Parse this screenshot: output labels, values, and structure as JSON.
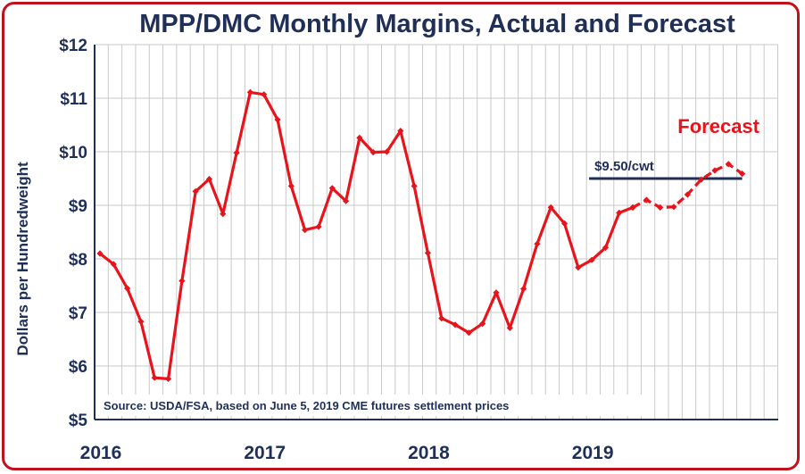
{
  "chart_data": {
    "type": "line",
    "title": "MPP/DMC Monthly Margins, Actual and Forecast",
    "ylabel": "Dollars per Hundredweight",
    "xlabel": "",
    "ylim": [
      5,
      12
    ],
    "y_ticks": [
      "$5",
      "$6",
      "$7",
      "$8",
      "$9",
      "$10",
      "$11",
      "$12"
    ],
    "x_ticks": [
      {
        "label": "2016",
        "month_index": 0
      },
      {
        "label": "2017",
        "month_index": 12
      },
      {
        "label": "2018",
        "month_index": 24
      },
      {
        "label": "2019",
        "month_index": 36
      }
    ],
    "grid": true,
    "series": [
      {
        "style": "solid",
        "color": "#e8141c",
        "start_month_index": 0,
        "values": [
          8.1,
          7.9,
          7.45,
          6.83,
          5.78,
          5.76,
          7.59,
          9.26,
          9.49,
          8.84,
          9.98,
          11.11,
          11.07,
          10.6,
          9.36,
          8.54,
          8.6,
          9.32,
          9.08,
          10.26,
          9.99,
          10.0,
          10.39,
          9.36,
          8.11,
          6.89,
          6.77,
          6.62,
          6.79,
          7.37,
          6.71,
          7.44,
          8.28,
          8.96,
          8.66,
          7.84,
          7.98,
          8.21,
          8.86,
          8.96
        ]
      },
      {
        "style": "dashed",
        "color": "#e8141c",
        "start_month_index": 39,
        "values": [
          8.96,
          9.1,
          8.96,
          8.97,
          9.2,
          9.48,
          9.65,
          9.77,
          9.59
        ]
      }
    ],
    "reference_line": {
      "value": 9.5,
      "label": "$9.50/cwt",
      "color": "#1f2f57",
      "start_month_index": 35.8,
      "end_month_index": 47
    },
    "annotations": {
      "forecast_label": "Forecast",
      "source": "Source:  USDA/FSA, based on June 5, 2019 CME futures settlement prices"
    }
  }
}
